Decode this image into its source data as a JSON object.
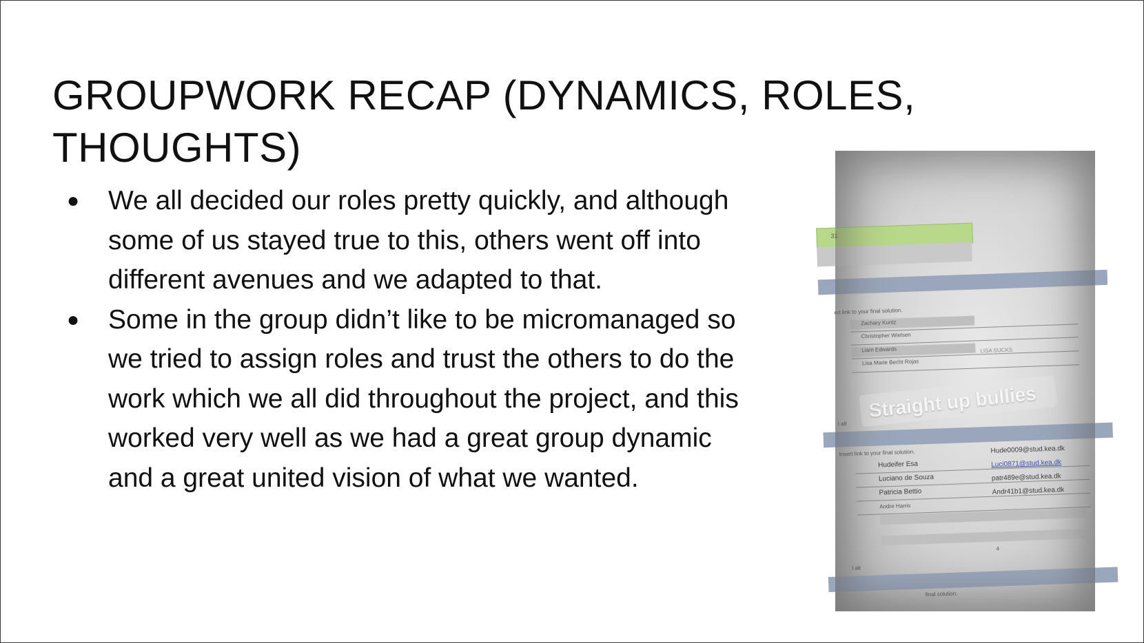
{
  "slide": {
    "title": "GROUPWORK RECAP (DYNAMICS, ROLES, THOUGHTS)",
    "bullets": [
      "We all decided our roles pretty quickly, and although some of us stayed true to this, others went off into different avenues and we adapted to that.",
      "Some in the group didn’t like to be micromanaged so we tried to assign roles and trust the others to do the work which we all did throughout the project, and this worked very well as we had a great group dynamic and a great united vision of what we wanted."
    ],
    "bullet_glyph": "●"
  },
  "photo": {
    "sticker_text": "Straight up bullies",
    "cell_value": "31",
    "group1": {
      "link_label": "ert link to your final solution.",
      "names": [
        "Zachary Kuntz",
        "Christopher Wielsen",
        "Liam Edwards",
        "Lisa Marie Becht Rojas"
      ],
      "note": "LISA SUCKS",
      "footer": "l alt"
    },
    "group2": {
      "link_label": "Insert link to your final solution.",
      "names": [
        "Hudeifer Esa",
        "Luciano de Souza",
        "Patricia Bettio",
        "Andre Harris"
      ],
      "emails": [
        "Hude0009@stud.kea.dk",
        "Luci0871@stud.kea.dk",
        "patr489e@stud.kea.dk",
        "Andr41b1@stud.kea.dk"
      ],
      "count": "4",
      "footer": "l alt"
    },
    "group3": {
      "link_label": "final solution."
    }
  }
}
